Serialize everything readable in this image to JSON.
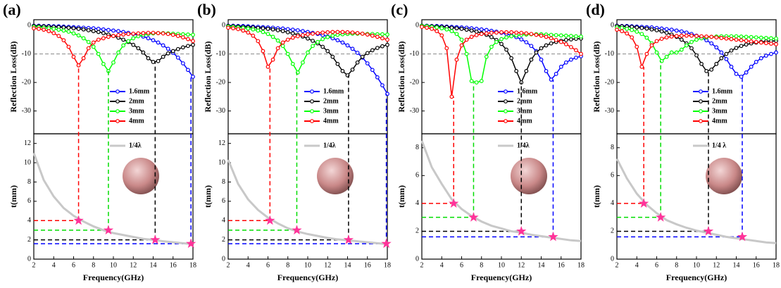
{
  "chart_data": [
    {
      "type": "line",
      "panel_label": "(a)",
      "ylabel": "Reflection Loss(dB)",
      "xlim": [
        2,
        18
      ],
      "ylim": [
        -38,
        2
      ],
      "yticks": [
        0,
        -10,
        -20,
        -30
      ],
      "reference_line": -10,
      "x": [
        2,
        2.5,
        3,
        3.5,
        4,
        4.5,
        5,
        5.5,
        6,
        6.5,
        7,
        7.5,
        8,
        8.5,
        9,
        9.5,
        10,
        10.5,
        11,
        11.5,
        12,
        12.5,
        13,
        13.5,
        14,
        14.5,
        15,
        15.5,
        16,
        16.5,
        17,
        17.5,
        18
      ],
      "series": [
        {
          "name": "1.6mm",
          "color": "#0000ff",
          "values": [
            -0.1,
            -0.1,
            -0.2,
            -0.2,
            -0.3,
            -0.3,
            -0.4,
            -0.5,
            -0.6,
            -0.7,
            -0.8,
            -0.9,
            -1,
            -1.2,
            -1.4,
            -1.6,
            -1.8,
            -2,
            -2.3,
            -2.6,
            -3,
            -3.4,
            -3.9,
            -4.5,
            -5.2,
            -6,
            -7,
            -8.2,
            -9.6,
            -11.3,
            -13.3,
            -15.6,
            -18
          ]
        },
        {
          "name": "2mm",
          "color": "#000000",
          "values": [
            -0.2,
            -0.3,
            -0.3,
            -0.4,
            -0.5,
            -0.6,
            -0.7,
            -0.8,
            -1,
            -1.2,
            -1.4,
            -1.7,
            -2,
            -2.3,
            -2.7,
            -3.2,
            -3.7,
            -4.3,
            -5,
            -5.8,
            -6.8,
            -8,
            -9.5,
            -11.5,
            -12.8,
            -12.5,
            -11,
            -9.8,
            -9,
            -8.3,
            -7.7,
            -7.2,
            -6.8
          ]
        },
        {
          "name": "3mm",
          "color": "#00ff00",
          "values": [
            -0.5,
            -0.6,
            -0.8,
            -1,
            -1.2,
            -1.5,
            -1.8,
            -2.2,
            -2.8,
            -3.5,
            -4.5,
            -5.8,
            -7.5,
            -10,
            -13.5,
            -16,
            -13,
            -9.5,
            -7,
            -5.5,
            -4.5,
            -3.8,
            -3.3,
            -3,
            -2.8,
            -2.7,
            -2.7,
            -2.8,
            -2.9,
            -3,
            -3.1,
            -3.2,
            -3.3
          ]
        },
        {
          "name": "4mm",
          "color": "#ff0000",
          "values": [
            -1,
            -1.2,
            -1.5,
            -2,
            -2.7,
            -3.7,
            -5.2,
            -7.5,
            -11,
            -14,
            -11.5,
            -8,
            -6,
            -5,
            -4.5,
            -4,
            -3.7,
            -3.4,
            -3.2,
            -3,
            -2.9,
            -2.8,
            -2.7,
            -2.6,
            -2.6,
            -2.7,
            -2.8,
            -3,
            -3.3,
            -3.7,
            -4.2,
            -4.8,
            -5.5
          ]
        }
      ]
    },
    {
      "type": "line",
      "ylabel": "t(mm)",
      "xlabel": "Frequency(GHz)",
      "xlim": [
        2,
        18
      ],
      "xticks": [
        2,
        4,
        6,
        8,
        10,
        12,
        14,
        16,
        18
      ],
      "ylim": [
        0,
        13
      ],
      "yticks": [
        0,
        2,
        4,
        6,
        8,
        10,
        12
      ],
      "x": [
        2,
        3,
        4,
        5,
        6,
        7,
        8,
        9,
        10,
        11,
        12,
        13,
        14,
        15,
        16,
        17,
        18
      ],
      "series": [
        {
          "name": "1/4λ",
          "color": "#c8c8c8",
          "values": [
            11,
            8.2,
            6.5,
            5.3,
            4.5,
            3.9,
            3.4,
            3,
            2.7,
            2.5,
            2.3,
            2.1,
            2,
            1.85,
            1.75,
            1.65,
            1.55
          ]
        }
      ],
      "markers": {
        "color": "#ff3399",
        "x": [
          6.5,
          9.5,
          14.2,
          17.8
        ],
        "y": [
          4,
          3,
          2,
          1.6
        ],
        "line_colors": [
          "#ff0000",
          "#00dd00",
          "#000000",
          "#0000ff"
        ]
      }
    },
    {
      "type": "line",
      "panel_label": "(b)",
      "ylabel": "Reflection Loss(dB)",
      "xlim": [
        2,
        18
      ],
      "ylim": [
        -38,
        2
      ],
      "yticks": [
        0,
        -10,
        -20,
        -30
      ],
      "reference_line": -10,
      "x": [
        2,
        2.5,
        3,
        3.5,
        4,
        4.5,
        5,
        5.5,
        6,
        6.5,
        7,
        7.5,
        8,
        8.5,
        9,
        9.5,
        10,
        10.5,
        11,
        11.5,
        12,
        12.5,
        13,
        13.5,
        14,
        14.5,
        15,
        15.5,
        16,
        16.5,
        17,
        17.5,
        18
      ],
      "series": [
        {
          "name": "1.6mm",
          "color": "#0000ff",
          "values": [
            -0.1,
            -0.1,
            -0.2,
            -0.2,
            -0.3,
            -0.4,
            -0.5,
            -0.6,
            -0.7,
            -0.8,
            -1,
            -1.1,
            -1.3,
            -1.5,
            -1.7,
            -2,
            -2.3,
            -2.6,
            -3,
            -3.4,
            -3.9,
            -4.5,
            -5.2,
            -6,
            -7,
            -8.2,
            -9.6,
            -11.3,
            -13.3,
            -15.6,
            -18.2,
            -21,
            -24
          ]
        },
        {
          "name": "2mm",
          "color": "#000000",
          "values": [
            -0.2,
            -0.3,
            -0.4,
            -0.5,
            -0.6,
            -0.7,
            -0.9,
            -1,
            -1.2,
            -1.4,
            -1.7,
            -2,
            -2.4,
            -2.8,
            -3.3,
            -3.9,
            -4.6,
            -5.4,
            -6.3,
            -7.5,
            -9,
            -11,
            -13.5,
            -16,
            -17.5,
            -15.5,
            -13,
            -11,
            -9.7,
            -8.7,
            -7.9,
            -7.3,
            -6.8
          ]
        },
        {
          "name": "3mm",
          "color": "#00ff00",
          "values": [
            -0.4,
            -0.5,
            -0.7,
            -0.9,
            -1.1,
            -1.4,
            -1.8,
            -2.3,
            -3,
            -4,
            -5.3,
            -7.2,
            -10,
            -13.5,
            -16.5,
            -13,
            -9.5,
            -7.2,
            -5.8,
            -4.8,
            -4.1,
            -3.6,
            -3.3,
            -3.1,
            -3,
            -2.9,
            -2.9,
            -2.9,
            -3,
            -3,
            -3.1,
            -3.1,
            -3.2
          ]
        },
        {
          "name": "4mm",
          "color": "#ff0000",
          "values": [
            -0.8,
            -1,
            -1.3,
            -1.8,
            -2.5,
            -3.6,
            -5.5,
            -9,
            -14.5,
            -12,
            -8,
            -6,
            -5,
            -4.3,
            -3.8,
            -3.4,
            -3.1,
            -2.9,
            -2.7,
            -2.5,
            -2.4,
            -2.3,
            -2.3,
            -2.3,
            -2.4,
            -2.5,
            -2.7,
            -2.9,
            -3.2,
            -3.6,
            -4,
            -4.5,
            -5
          ]
        }
      ]
    },
    {
      "type": "line",
      "ylabel": "t(mm)",
      "xlabel": "Frequency(GHz)",
      "xlim": [
        2,
        18
      ],
      "xticks": [
        2,
        4,
        6,
        8,
        10,
        12,
        14,
        16,
        18
      ],
      "ylim": [
        0,
        13
      ],
      "yticks": [
        0,
        2,
        4,
        6,
        8,
        10,
        12
      ],
      "x": [
        2,
        3,
        4,
        5,
        6,
        7,
        8,
        9,
        10,
        11,
        12,
        13,
        14,
        15,
        16,
        17,
        18
      ],
      "series": [
        {
          "name": "1/4λ",
          "color": "#c8c8c8",
          "values": [
            10.3,
            7.8,
            6.2,
            5.1,
            4.3,
            3.7,
            3.2,
            2.85,
            2.6,
            2.4,
            2.2,
            2.05,
            1.95,
            1.85,
            1.75,
            1.65,
            1.55
          ]
        }
      ],
      "markers": {
        "color": "#ff3399",
        "x": [
          6.2,
          8.9,
          14.1,
          17.9
        ],
        "y": [
          4,
          3,
          2,
          1.6
        ],
        "line_colors": [
          "#ff0000",
          "#00dd00",
          "#000000",
          "#0000ff"
        ]
      }
    },
    {
      "type": "line",
      "panel_label": "(c)",
      "ylabel": "Reflection Loss(dB)",
      "xlim": [
        2,
        18
      ],
      "ylim": [
        -38,
        2
      ],
      "yticks": [
        0,
        -10,
        -20,
        -30
      ],
      "reference_line": -10,
      "x": [
        2,
        2.5,
        3,
        3.5,
        4,
        4.5,
        5,
        5.5,
        6,
        6.5,
        7,
        7.5,
        8,
        8.5,
        9,
        9.5,
        10,
        10.5,
        11,
        11.5,
        12,
        12.5,
        13,
        13.5,
        14,
        14.5,
        15,
        15.5,
        16,
        16.5,
        17,
        17.5,
        18
      ],
      "series": [
        {
          "name": "1.6mm",
          "color": "#0000ff",
          "values": [
            -0.1,
            -0.1,
            -0.2,
            -0.2,
            -0.3,
            -0.4,
            -0.5,
            -0.6,
            -0.7,
            -0.8,
            -1,
            -1.2,
            -1.4,
            -1.6,
            -1.9,
            -2.2,
            -2.6,
            -3,
            -3.5,
            -4.1,
            -4.9,
            -5.9,
            -7.2,
            -9,
            -12,
            -16,
            -19,
            -17,
            -14.5,
            -13,
            -12,
            -11.3,
            -10.8
          ]
        },
        {
          "name": "2mm",
          "color": "#000000",
          "values": [
            -0.1,
            -0.2,
            -0.3,
            -0.4,
            -0.5,
            -0.6,
            -0.8,
            -1,
            -1.2,
            -1.5,
            -1.8,
            -2.2,
            -2.7,
            -3.3,
            -4.1,
            -5.1,
            -6.5,
            -8.5,
            -11.5,
            -16,
            -20,
            -16,
            -12,
            -9.5,
            -8,
            -7,
            -6.3,
            -5.8,
            -5.4,
            -5.1,
            -4.9,
            -4.7,
            -4.6
          ]
        },
        {
          "name": "3mm",
          "color": "#00ff00",
          "values": [
            -0.2,
            -0.3,
            -0.5,
            -0.7,
            -1,
            -1.4,
            -2,
            -3,
            -5,
            -10,
            -19.5,
            -20,
            -19.5,
            -11,
            -7.5,
            -5.8,
            -4.8,
            -4.2,
            -3.8,
            -3.5,
            -3.3,
            -3.2,
            -3.1,
            -3.1,
            -3.1,
            -3.2,
            -3.3,
            -3.4,
            -3.5,
            -3.6,
            -3.7,
            -3.8,
            -3.9
          ]
        },
        {
          "name": "4mm",
          "color": "#ff0000",
          "values": [
            -0.5,
            -0.8,
            -1.2,
            -2,
            -3.5,
            -8,
            -25,
            -12,
            -7,
            -5,
            -4,
            -3.4,
            -3,
            -2.8,
            -2.6,
            -2.5,
            -2.4,
            -2.4,
            -2.4,
            -2.5,
            -2.6,
            -2.8,
            -3,
            -3.3,
            -3.6,
            -4,
            -4.5,
            -5.1,
            -5.8,
            -6.6,
            -7.6,
            -8.7,
            -10
          ]
        }
      ]
    },
    {
      "type": "line",
      "ylabel": "t(mm)",
      "xlabel": "Frequency(GHz)",
      "xlim": [
        2,
        18
      ],
      "xticks": [
        2,
        4,
        6,
        8,
        10,
        12,
        14,
        16,
        18
      ],
      "ylim": [
        0,
        9
      ],
      "yticks": [
        0,
        2,
        4,
        6,
        8
      ],
      "x": [
        2,
        3,
        4,
        5,
        6,
        7,
        8,
        9,
        10,
        11,
        12,
        13,
        14,
        15,
        16,
        17,
        18
      ],
      "series": [
        {
          "name": "1/4λ",
          "color": "#c8c8c8",
          "values": [
            8.5,
            6.6,
            5.4,
            4.3,
            3.6,
            3.1,
            2.7,
            2.4,
            2.2,
            2,
            1.9,
            1.75,
            1.65,
            1.55,
            1.45,
            1.35,
            1.3
          ]
        }
      ],
      "markers": {
        "color": "#ff3399",
        "x": [
          5.2,
          7.2,
          12,
          15.2
        ],
        "y": [
          4,
          3,
          2,
          1.6
        ],
        "line_colors": [
          "#ff0000",
          "#00dd00",
          "#000000",
          "#0000ff"
        ]
      }
    },
    {
      "type": "line",
      "panel_label": "(d)",
      "ylabel": "Reflection Loss(dB)",
      "xlim": [
        2,
        18
      ],
      "ylim": [
        -38,
        2
      ],
      "yticks": [
        0,
        -10,
        -20,
        -30
      ],
      "reference_line": -10,
      "x": [
        2,
        2.5,
        3,
        3.5,
        4,
        4.5,
        5,
        5.5,
        6,
        6.5,
        7,
        7.5,
        8,
        8.5,
        9,
        9.5,
        10,
        10.5,
        11,
        11.5,
        12,
        12.5,
        13,
        13.5,
        14,
        14.5,
        15,
        15.5,
        16,
        16.5,
        17,
        17.5,
        18
      ],
      "series": [
        {
          "name": "1.6mm",
          "color": "#0000ff",
          "values": [
            -0.1,
            -0.2,
            -0.2,
            -0.3,
            -0.4,
            -0.5,
            -0.6,
            -0.7,
            -0.9,
            -1.1,
            -1.3,
            -1.5,
            -1.8,
            -2.1,
            -2.5,
            -3,
            -3.6,
            -4.3,
            -5.2,
            -6.3,
            -7.7,
            -9.5,
            -11.8,
            -14.5,
            -17,
            -18,
            -16.5,
            -14.5,
            -12.8,
            -11.5,
            -10.6,
            -10,
            -9.5
          ]
        },
        {
          "name": "2mm",
          "color": "#000000",
          "values": [
            -0.2,
            -0.3,
            -0.4,
            -0.5,
            -0.7,
            -0.9,
            -1.1,
            -1.4,
            -1.7,
            -2.1,
            -2.6,
            -3.2,
            -4,
            -5,
            -6.3,
            -8,
            -10.5,
            -13.5,
            -16,
            -15.5,
            -13.5,
            -11.5,
            -10,
            -8.8,
            -7.9,
            -7.2,
            -6.7,
            -6.3,
            -6,
            -5.8,
            -5.6,
            -5.5,
            -5.4
          ]
        },
        {
          "name": "3mm",
          "color": "#00ff00",
          "values": [
            -0.7,
            -0.9,
            -1.2,
            -1.6,
            -2.2,
            -3,
            -4.3,
            -6.3,
            -9.5,
            -12.5,
            -11,
            -9.5,
            -9.5,
            -8.5,
            -7,
            -5.8,
            -5,
            -4.5,
            -4.2,
            -4,
            -3.9,
            -3.8,
            -3.8,
            -3.8,
            -3.8,
            -3.9,
            -4,
            -4.1,
            -4.2,
            -4.3,
            -4.4,
            -4.5,
            -4.6
          ]
        },
        {
          "name": "4mm",
          "color": "#ff0000",
          "values": [
            -1.5,
            -2,
            -2.8,
            -4.2,
            -7.5,
            -14.5,
            -10,
            -7,
            -5.5,
            -4.7,
            -4.2,
            -3.9,
            -3.7,
            -3.6,
            -3.6,
            -3.6,
            -3.7,
            -3.8,
            -3.9,
            -4,
            -4.2,
            -4.4,
            -4.6,
            -4.8,
            -5,
            -5.2,
            -5.4,
            -5.6,
            -5.8,
            -6,
            -6.2,
            -6.4,
            -6.6
          ]
        }
      ]
    },
    {
      "type": "line",
      "ylabel": "t(mm)",
      "xlabel": "Frequency(GHz)",
      "xlim": [
        2,
        18
      ],
      "xticks": [
        2,
        4,
        6,
        8,
        10,
        12,
        14,
        16,
        18
      ],
      "ylim": [
        0,
        9
      ],
      "yticks": [
        0,
        2,
        4,
        6,
        8
      ],
      "x": [
        2,
        3,
        4,
        5,
        6,
        7,
        8,
        9,
        10,
        11,
        12,
        13,
        14,
        15,
        16,
        17,
        18
      ],
      "series": [
        {
          "name": "1/4 λ",
          "color": "#c8c8c8",
          "values": [
            7.2,
            5.8,
            4.7,
            3.9,
            3.3,
            2.8,
            2.5,
            2.25,
            2.05,
            1.9,
            1.75,
            1.6,
            1.5,
            1.4,
            1.3,
            1.2,
            1.15
          ]
        }
      ],
      "markers": {
        "color": "#ff3399",
        "x": [
          4.7,
          6.4,
          11.2,
          14.6
        ],
        "y": [
          4,
          3,
          2,
          1.6
        ],
        "line_colors": [
          "#ff0000",
          "#00dd00",
          "#000000",
          "#0000ff"
        ]
      }
    }
  ]
}
